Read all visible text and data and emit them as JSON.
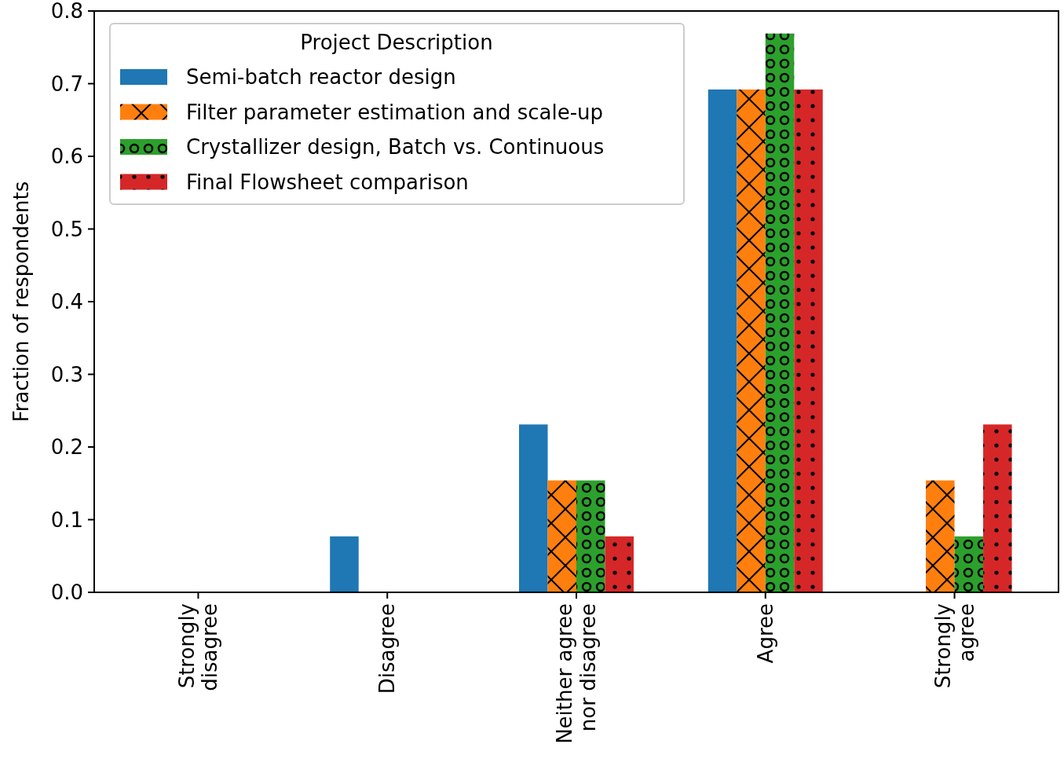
{
  "chart_data": {
    "type": "bar",
    "categories": [
      "Strongly\ndisagree",
      "Disagree",
      "Neither agree\nnor disagree",
      "Agree",
      "Strongly\nagree"
    ],
    "series": [
      {
        "name": "Semi-batch reactor design",
        "color": "#1f77b4",
        "values": [
          0,
          0.077,
          0.231,
          0.692,
          0
        ]
      },
      {
        "name": "Filter parameter estimation and scale-up",
        "color": "#ff7f0e",
        "values": [
          0,
          0,
          0.154,
          0.692,
          0.154
        ]
      },
      {
        "name": "Crystallizer design, Batch vs. Continuous",
        "color": "#2ca02c",
        "values": [
          0,
          0,
          0.154,
          0.769,
          0.077
        ]
      },
      {
        "name": "Final Flowsheet comparison",
        "color": "#d62728",
        "values": [
          0,
          0,
          0.077,
          0.692,
          0.231
        ]
      }
    ],
    "ylabel": "Fraction of respondents",
    "legend_title": "Project Description",
    "legend": "top left",
    "ylim": [
      0,
      0.8
    ],
    "yticks": [
      {
        "value": 0,
        "label": "0.0"
      },
      {
        "value": 0.1,
        "label": "0.1"
      },
      {
        "value": 0.2,
        "label": "0.2"
      },
      {
        "value": 0.3,
        "label": "0.3"
      },
      {
        "value": 0.4,
        "label": "0.4"
      },
      {
        "value": 0.5,
        "label": "0.5"
      },
      {
        "value": 0.6,
        "label": "0.6"
      },
      {
        "value": 0.7,
        "label": "0.7"
      },
      {
        "value": 0.8,
        "label": "0.8"
      }
    ]
  }
}
